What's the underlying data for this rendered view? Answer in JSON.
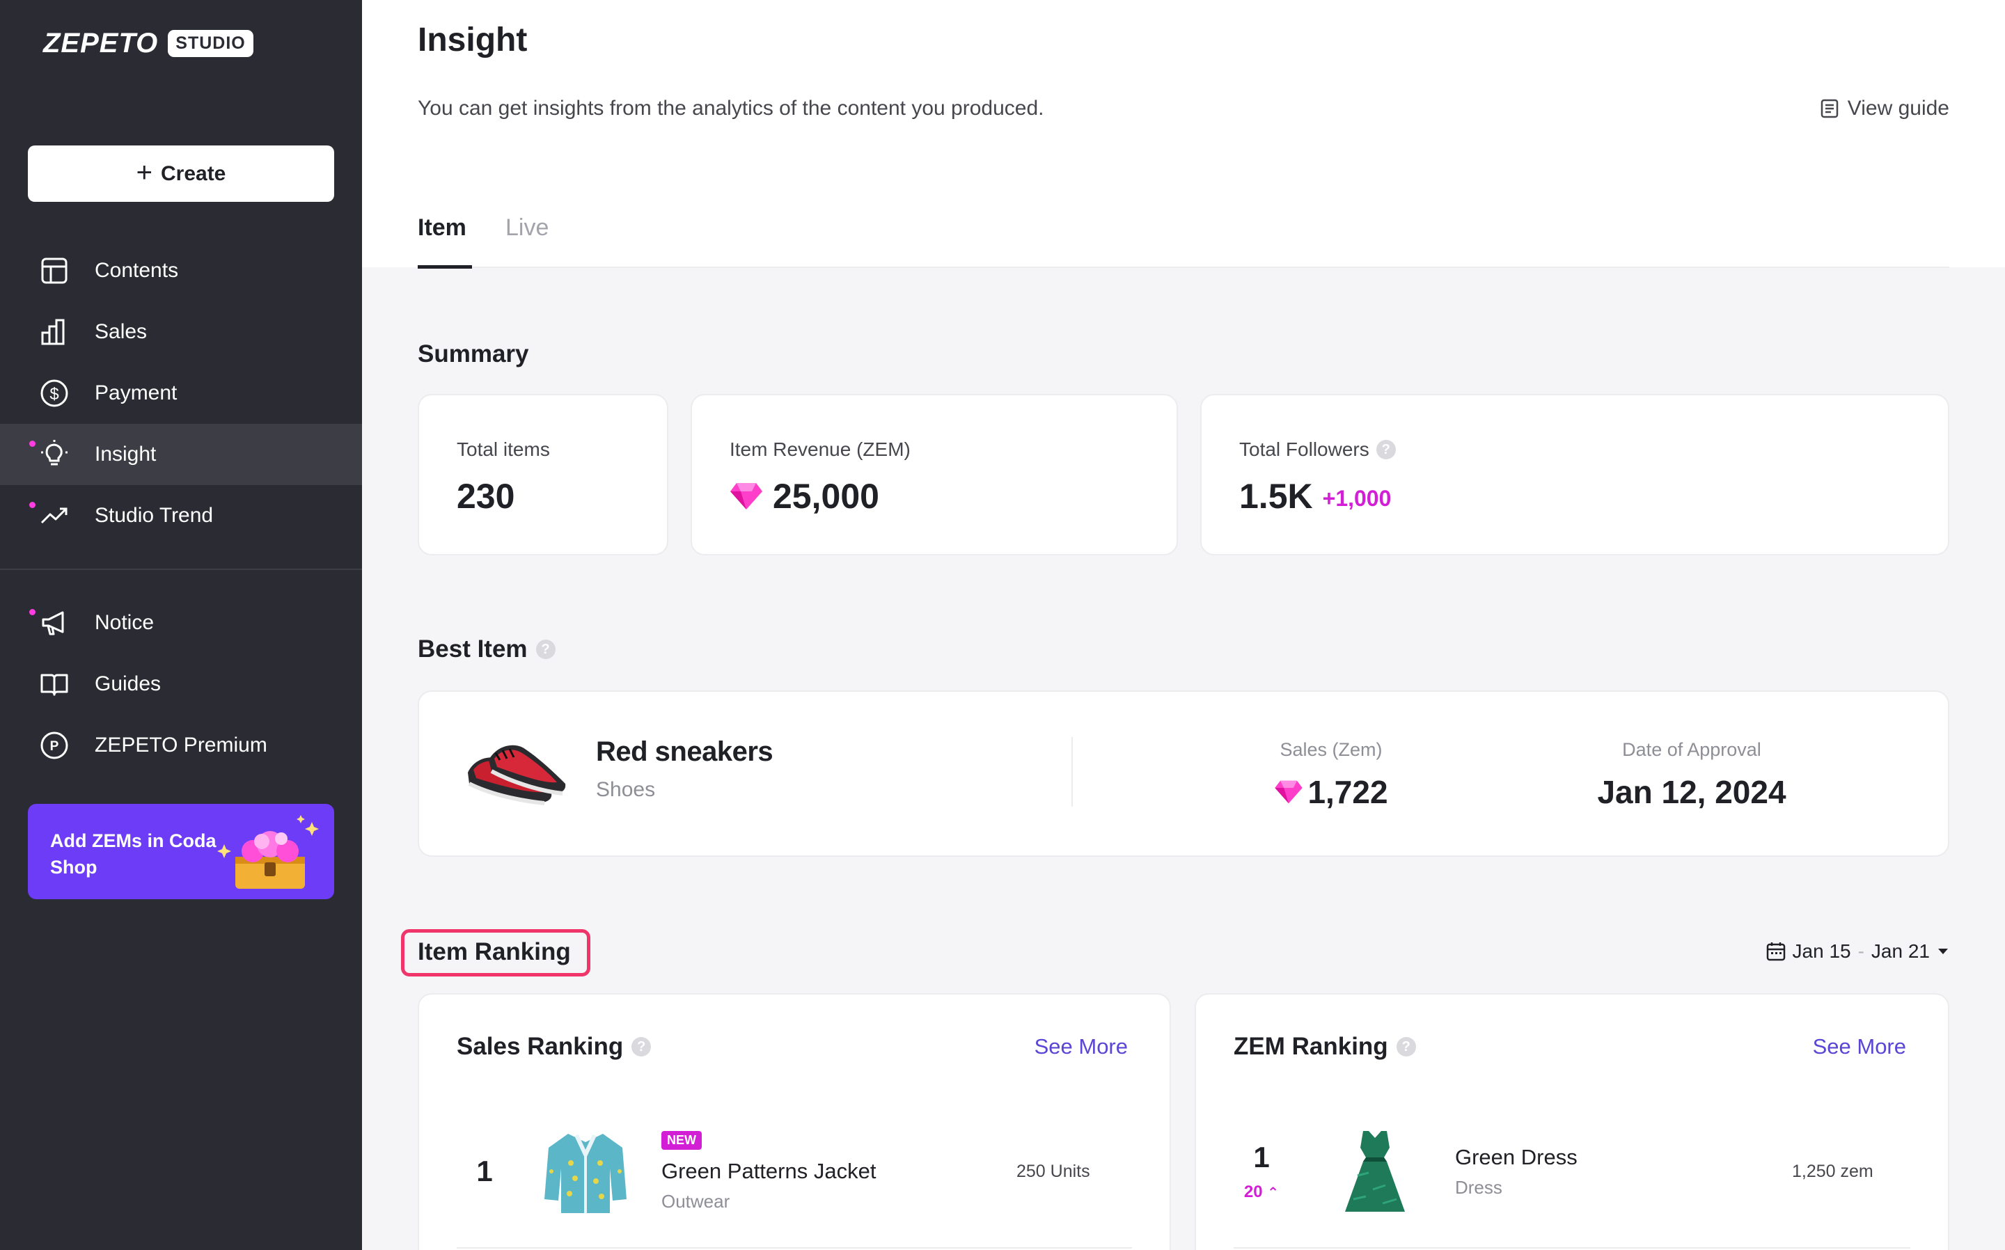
{
  "sidebar": {
    "logo_word": "ZEPETO",
    "logo_badge": "STUDIO",
    "create_label": "Create",
    "items": [
      {
        "label": "Contents",
        "icon": "layout-icon"
      },
      {
        "label": "Sales",
        "icon": "bar-chart-icon"
      },
      {
        "label": "Payment",
        "icon": "dollar-circle-icon"
      },
      {
        "label": "Insight",
        "icon": "lightbulb-icon",
        "active": true
      },
      {
        "label": "Studio Trend",
        "icon": "trend-up-icon"
      },
      {
        "label": "Notice",
        "icon": "megaphone-icon"
      },
      {
        "label": "Guides",
        "icon": "book-icon"
      },
      {
        "label": "ZEPETO Premium",
        "icon": "premium-circle-icon"
      }
    ],
    "promo": {
      "text": "Add ZEMs in Coda Shop"
    }
  },
  "header": {
    "title": "Insight",
    "description": "You can get insights from the analytics of the content you produced.",
    "view_guide": "View guide"
  },
  "tabs": [
    {
      "label": "Item",
      "active": true
    },
    {
      "label": "Live",
      "active": false
    }
  ],
  "summary": {
    "title": "Summary",
    "total_items": {
      "label": "Total items",
      "value": "230"
    },
    "item_revenue": {
      "label": "Item Revenue (ZEM)",
      "value": "25,000"
    },
    "total_followers": {
      "label": "Total Followers",
      "value": "1.5K",
      "delta": "+1,000"
    }
  },
  "best_item": {
    "title": "Best Item",
    "name": "Red sneakers",
    "category": "Shoes",
    "sales_label": "Sales (Zem)",
    "sales_value": "1,722",
    "approval_label": "Date of Approval",
    "approval_value": "Jan 12, 2024"
  },
  "item_ranking": {
    "title": "Item Ranking",
    "date_start": "Jan 15",
    "date_sep": "-",
    "date_end": "Jan 21",
    "sales_ranking": {
      "title": "Sales Ranking",
      "see_more": "See More",
      "rows": [
        {
          "rank": "1",
          "badge": "NEW",
          "name": "Green Patterns Jacket",
          "category": "Outwear",
          "value": "250 Units"
        }
      ]
    },
    "zem_ranking": {
      "title": "ZEM Ranking",
      "see_more": "See More",
      "rows": [
        {
          "rank": "1",
          "change": "20",
          "name": "Green Dress",
          "category": "Dress",
          "value": "1,250 zem"
        }
      ]
    }
  },
  "colors": {
    "sidebar_bg": "#2b2c33",
    "accent_purple": "#6c3cf6",
    "highlight_pink": "#d21fd6",
    "link_purple": "#5a46d6",
    "annotation_red": "#f0356b"
  }
}
